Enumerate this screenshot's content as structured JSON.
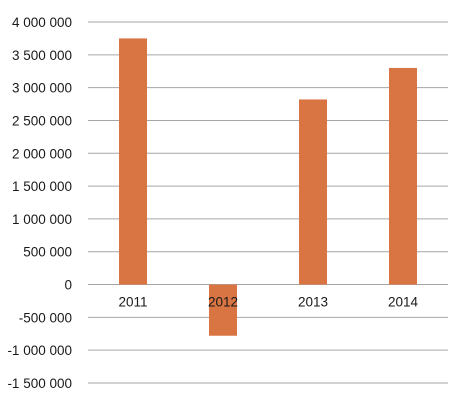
{
  "chart_data": {
    "type": "bar",
    "categories": [
      "2011",
      "2012",
      "2013",
      "2014"
    ],
    "values": [
      3750000,
      -780000,
      2820000,
      3300000
    ],
    "ylim": [
      -1500000,
      4000000
    ],
    "yticks": [
      4000000,
      3500000,
      3000000,
      2500000,
      2000000,
      1500000,
      1000000,
      500000,
      0,
      -500000,
      -1000000,
      -1500000
    ],
    "ytick_labels": [
      "4 000 000",
      "3 500 000",
      "3 000 000",
      "2 500 000",
      "2 000 000",
      "1 500 000",
      "1 000 000",
      "500 000",
      "0",
      "-500 000",
      "-1 000 000",
      "-1 500 000"
    ],
    "title": "",
    "xlabel": "",
    "ylabel": "",
    "grid": true,
    "legend": "none",
    "colors": {
      "bar": "#d97443",
      "grid": "#a6a6a6",
      "text": "#1a1a1a"
    }
  }
}
